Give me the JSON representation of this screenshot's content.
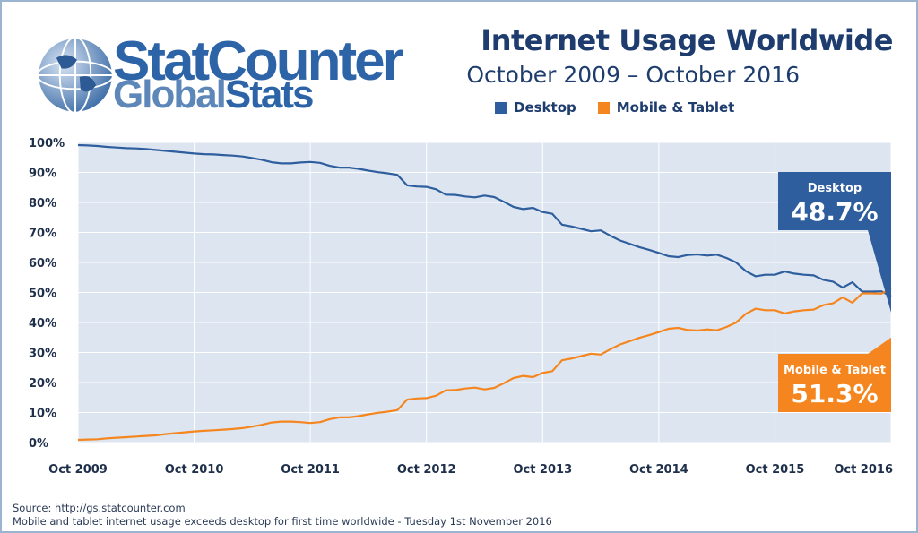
{
  "logo": {
    "line1_a": "Stat",
    "line1_b": "Counter",
    "line2_a": "Global",
    "line2_b": "Stats"
  },
  "header": {
    "title": "Internet Usage Worldwide",
    "subtitle": "October 2009 – October 2016"
  },
  "footer": {
    "source": "Source: http://gs.statcounter.com",
    "note": "Mobile and tablet internet usage exceeds desktop for first time worldwide - Tuesday 1st November 2016"
  },
  "colors": {
    "desktop": "#2e5e9e",
    "mobile": "#f5861f",
    "grid": "#ffffff",
    "plot_bg": "#dde6f0",
    "axis_text": "#1e2f4a"
  },
  "chart_data": {
    "type": "line",
    "title": "Internet Usage Worldwide",
    "subtitle": "October 2009 – October 2016",
    "x_ticks": [
      "Oct 2009",
      "Oct 2010",
      "Oct 2011",
      "Oct 2012",
      "Oct 2013",
      "Oct 2014",
      "Oct 2015",
      "Oct 2016"
    ],
    "y_ticks": [
      "0%",
      "10%",
      "20%",
      "30%",
      "40%",
      "50%",
      "60%",
      "70%",
      "80%",
      "90%",
      "100%"
    ],
    "ylim": [
      0,
      100
    ],
    "grid": true,
    "legend_position": "top",
    "x_start": "Oct 2009",
    "x_end": "Oct 2016",
    "series": [
      {
        "name": "Desktop",
        "values": [
          99.1,
          99.0,
          98.8,
          98.5,
          98.3,
          98.1,
          98.0,
          97.8,
          97.5,
          97.2,
          96.9,
          96.6,
          96.3,
          96.1,
          96.0,
          95.8,
          95.6,
          95.3,
          94.8,
          94.2,
          93.4,
          93.0,
          93.0,
          93.3,
          93.5,
          93.2,
          92.2,
          91.6,
          91.6,
          91.2,
          90.6,
          90.1,
          89.7,
          89.2,
          85.7,
          85.3,
          85.2,
          84.4,
          82.6,
          82.5,
          82.0,
          81.7,
          82.3,
          81.8,
          80.2,
          78.5,
          77.8,
          78.2,
          76.8,
          76.2,
          72.6,
          72.0,
          71.2,
          70.4,
          70.7,
          68.9,
          67.3,
          66.2,
          65.1,
          64.2,
          63.2,
          62.1,
          61.8,
          62.5,
          62.7,
          62.3,
          62.6,
          61.5,
          60.0,
          57.1,
          55.4,
          55.9,
          55.9,
          57.0,
          56.3,
          55.9,
          55.7,
          54.2,
          53.6,
          51.6,
          53.4,
          50.3,
          50.3,
          50.4,
          48.7
        ],
        "callout_label": "Desktop",
        "callout_value": "48.7%"
      },
      {
        "name": "Mobile & Tablet",
        "values": [
          0.9,
          1.0,
          1.1,
          1.4,
          1.6,
          1.8,
          2.0,
          2.2,
          2.4,
          2.8,
          3.1,
          3.4,
          3.7,
          3.9,
          4.1,
          4.3,
          4.5,
          4.8,
          5.3,
          5.9,
          6.7,
          7.0,
          7.0,
          6.8,
          6.5,
          6.8,
          7.8,
          8.4,
          8.4,
          8.8,
          9.4,
          9.9,
          10.3,
          10.8,
          14.3,
          14.7,
          14.8,
          15.6,
          17.4,
          17.5,
          18.0,
          18.3,
          17.7,
          18.2,
          19.8,
          21.5,
          22.2,
          21.8,
          23.2,
          23.8,
          27.4,
          28.0,
          28.8,
          29.6,
          29.3,
          31.1,
          32.7,
          33.8,
          34.9,
          35.8,
          36.8,
          37.9,
          38.2,
          37.5,
          37.3,
          37.7,
          37.4,
          38.5,
          40.0,
          42.9,
          44.6,
          44.1,
          44.1,
          43.0,
          43.7,
          44.1,
          44.3,
          45.8,
          46.4,
          48.4,
          46.6,
          49.7,
          49.7,
          49.6,
          51.3
        ],
        "callout_label": "Mobile & Tablet",
        "callout_value": "51.3%"
      }
    ]
  }
}
